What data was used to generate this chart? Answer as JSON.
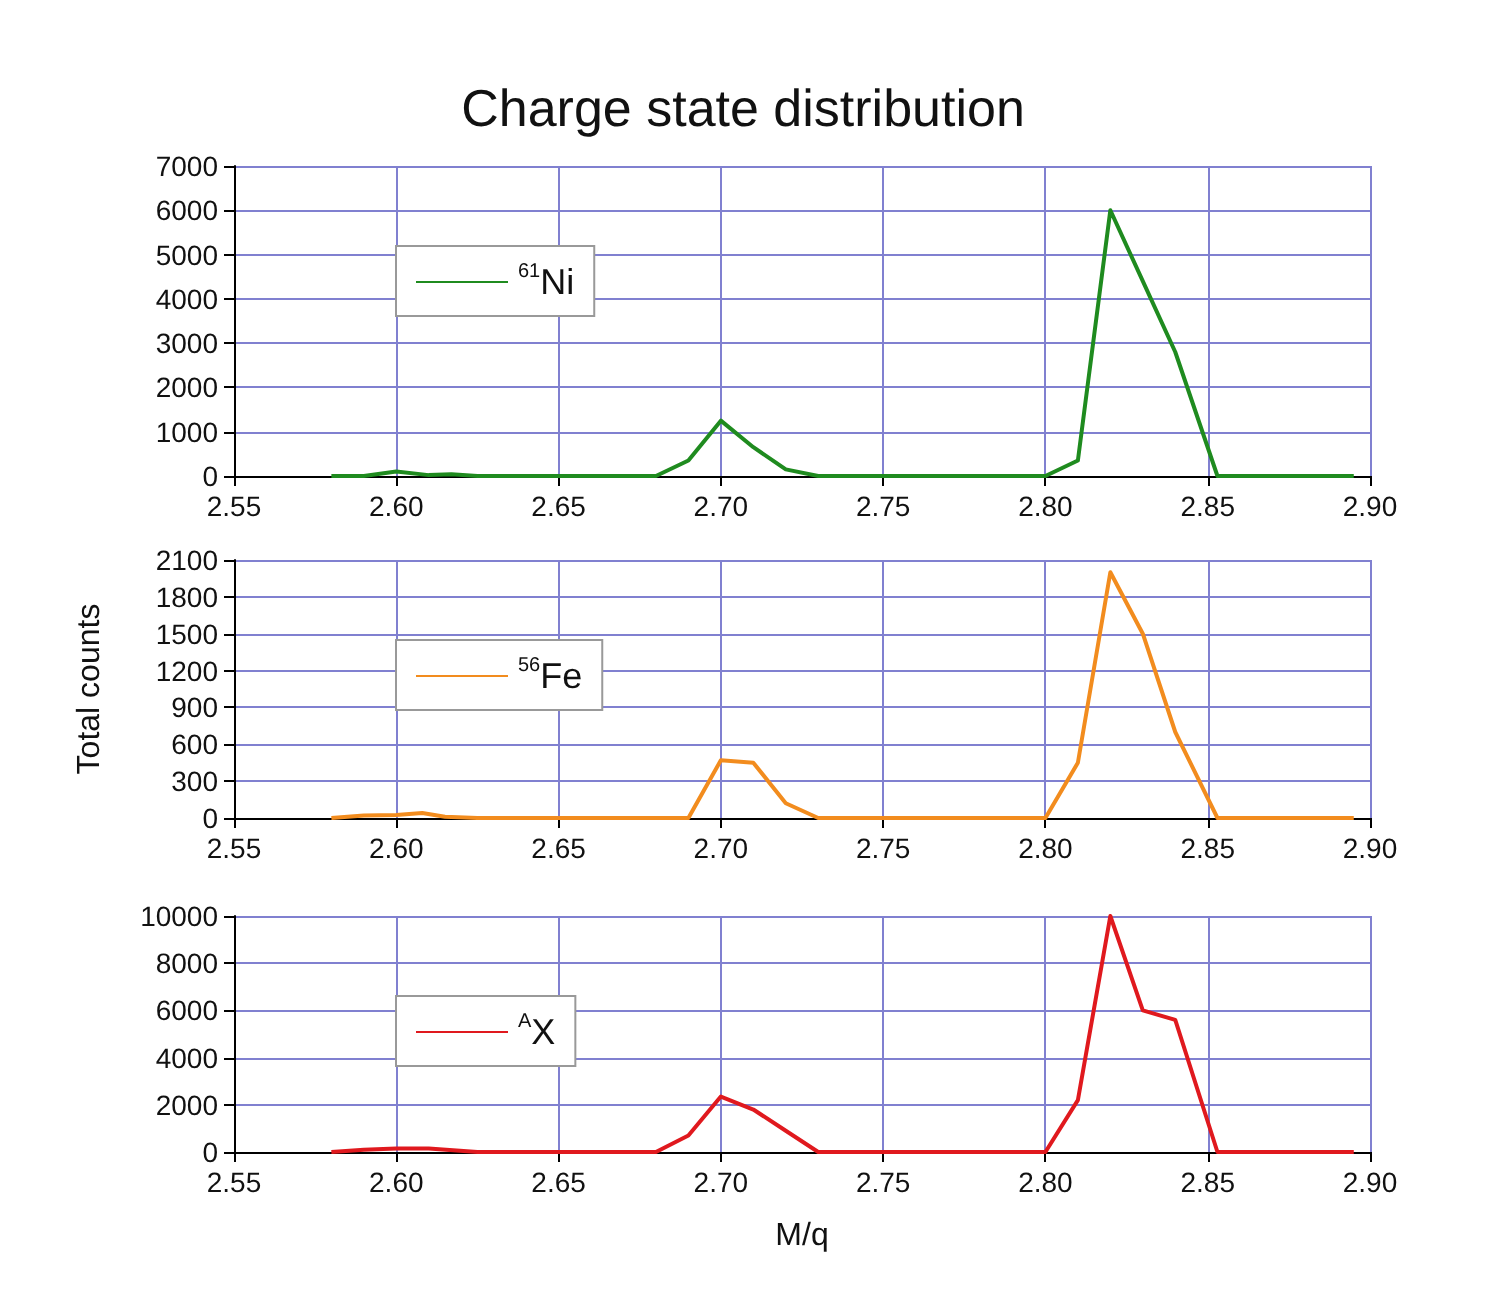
{
  "chart_data": [
    {
      "type": "line",
      "title": "Charge state distribution",
      "legend": "top left",
      "grid": true,
      "tick_labels": [
        "x",
        "y"
      ],
      "xlim": [
        2.55,
        2.9
      ],
      "xticks": [
        2.55,
        {
          "value": 2.6,
          "label": "2.60"
        },
        2.65,
        {
          "value": 2.7,
          "label": "2.70"
        },
        2.75,
        {
          "value": 2.8,
          "label": "2.80"
        },
        2.85,
        {
          "value": 2.9,
          "label": "2.90"
        }
      ],
      "ylim": [
        0,
        7000
      ],
      "yticks": [
        0,
        1000,
        2000,
        3000,
        4000,
        5000,
        6000,
        7000
      ],
      "series": [
        {
          "name": "$^{61}$Ni",
          "color": "#1f8b1f",
          "x": [
            2.58,
            2.59,
            2.6,
            2.61,
            2.617,
            2.625,
            2.68,
            2.69,
            2.7,
            2.71,
            2.72,
            2.73,
            2.8,
            2.81,
            2.82,
            2.83,
            2.84,
            2.853,
            2.895
          ],
          "values": [
            0,
            0,
            100,
            20,
            40,
            0,
            0,
            350,
            1250,
            650,
            150,
            0,
            0,
            350,
            6000,
            4400,
            2800,
            0,
            0
          ]
        }
      ]
    },
    {
      "type": "line",
      "ylabel": "Total counts",
      "legend": "top left",
      "grid": true,
      "xlim": [
        2.55,
        2.9
      ],
      "xticks": [
        2.55,
        {
          "value": 2.6,
          "label": "2.60"
        },
        2.65,
        {
          "value": 2.7,
          "label": "2.70"
        },
        2.75,
        {
          "value": 2.8,
          "label": "2.80"
        },
        2.85,
        {
          "value": 2.9,
          "label": "2.90"
        }
      ],
      "ylim": [
        0,
        2100
      ],
      "yticks": [
        0,
        300,
        600,
        900,
        1200,
        1500,
        1800,
        2100
      ],
      "series": [
        {
          "name": "$^{56}$Fe",
          "color": "#f28c1e",
          "x": [
            2.58,
            2.59,
            2.6,
            2.608,
            2.615,
            2.625,
            2.69,
            2.7,
            2.71,
            2.72,
            2.73,
            2.8,
            2.81,
            2.82,
            2.83,
            2.84,
            2.853,
            2.895
          ],
          "values": [
            0,
            20,
            25,
            40,
            10,
            0,
            0,
            470,
            450,
            120,
            0,
            0,
            450,
            2000,
            1500,
            700,
            0,
            0
          ]
        }
      ]
    },
    {
      "type": "line",
      "xlabel": "M/q",
      "legend": "top left",
      "grid": true,
      "xlim": [
        2.55,
        2.9
      ],
      "xticks": [
        2.55,
        {
          "value": 2.6,
          "label": "2.60"
        },
        2.65,
        {
          "value": 2.7,
          "label": "2.70"
        },
        2.75,
        {
          "value": 2.8,
          "label": "2.80"
        },
        2.85,
        {
          "value": 2.9,
          "label": "2.90"
        }
      ],
      "ylim": [
        0,
        10000
      ],
      "yticks": [
        0,
        2000,
        4000,
        6000,
        8000,
        10000
      ],
      "series": [
        {
          "name": "$^{A}$X",
          "color": "#e0191e",
          "x": [
            2.58,
            2.59,
            2.6,
            2.61,
            2.625,
            2.68,
            2.69,
            2.7,
            2.71,
            2.72,
            2.73,
            2.8,
            2.81,
            2.82,
            2.83,
            2.84,
            2.853,
            2.895
          ],
          "values": [
            0,
            100,
            150,
            150,
            0,
            0,
            700,
            2350,
            1800,
            900,
            0,
            0,
            2200,
            10000,
            6000,
            5600,
            0,
            0
          ]
        }
      ]
    }
  ]
}
